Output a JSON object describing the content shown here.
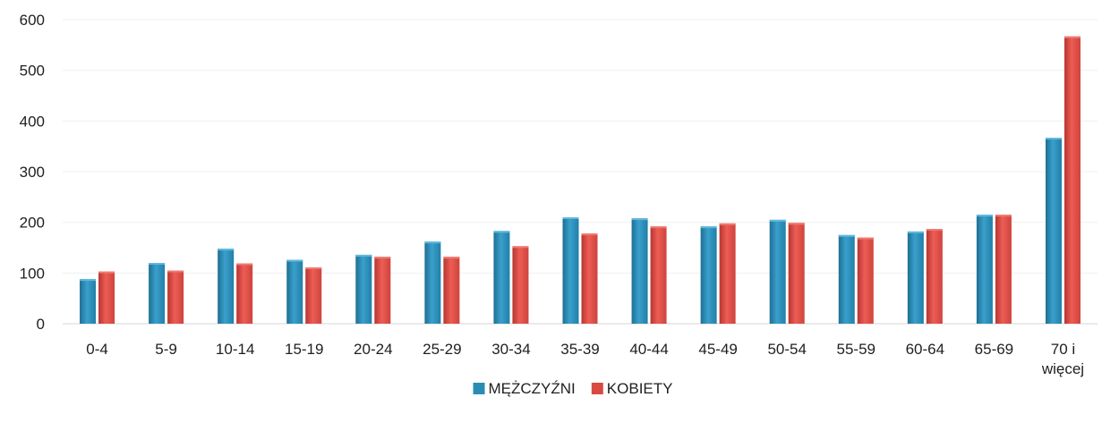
{
  "chart_data": {
    "type": "bar",
    "categories": [
      "0-4",
      "5-9",
      "10-14",
      "15-19",
      "20-24",
      "25-29",
      "30-34",
      "35-39",
      "40-44",
      "45-49",
      "50-54",
      "55-59",
      "60-64",
      "65-69",
      "70 i więcej"
    ],
    "series": [
      {
        "name": "MĘŻCZYŹNI",
        "color": "#2a8cb5",
        "values": [
          88,
          120,
          148,
          126,
          136,
          162,
          183,
          210,
          208,
          192,
          205,
          175,
          182,
          215,
          367
        ]
      },
      {
        "name": "KOBIETY",
        "color": "#d94a42",
        "values": [
          103,
          105,
          119,
          111,
          132,
          132,
          153,
          178,
          192,
          198,
          199,
          170,
          187,
          215,
          567
        ]
      }
    ],
    "ylim": [
      0,
      600
    ],
    "yticks": [
      0,
      100,
      200,
      300,
      400,
      500,
      600
    ],
    "grid": true,
    "legend": "bottom",
    "title": "",
    "xlabel": "",
    "ylabel": ""
  }
}
